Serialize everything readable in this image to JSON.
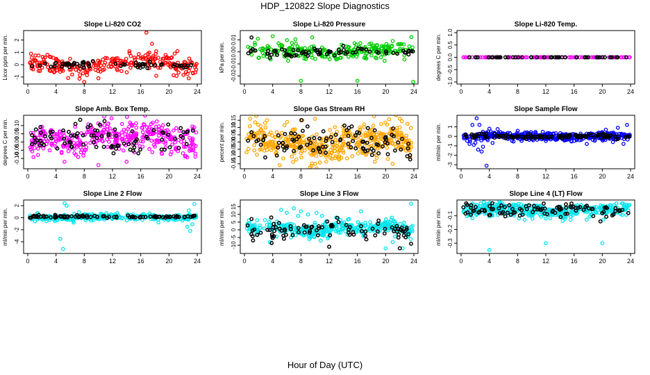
{
  "page": {
    "title": "HDP_120822  Slope Diagnostics",
    "x_axis_title": "Hour of Day (UTC)"
  },
  "chart_data": [
    {
      "type": "scatter",
      "title": "Slope Li-820 CO2",
      "ylabel": "Licor ppm per min.",
      "xlim": [
        0,
        24
      ],
      "ylim": [
        -1.4,
        2.6
      ],
      "xticks": [
        0,
        4,
        8,
        12,
        16,
        20,
        24
      ],
      "xtick_labels": [
        "0",
        "4",
        "8",
        "12",
        "16",
        "20",
        "24"
      ],
      "yticks": [
        -1,
        0,
        1,
        2
      ],
      "ytick_labels": [
        "-1",
        "0",
        "1",
        "2"
      ],
      "color": "#ff0000",
      "series": [
        {
          "name": "main",
          "center": 0.05,
          "spread": 0.35,
          "wobble": [
            0.15,
            0.35
          ],
          "count": 260,
          "outliers": [
            [
              14.4,
              1.1
            ],
            [
              14.6,
              0.7
            ],
            [
              16.8,
              2.6
            ],
            [
              17.6,
              1.7
            ],
            [
              18.2,
              -0.9
            ],
            [
              19.9,
              0.5
            ],
            [
              20.8,
              0.9
            ],
            [
              21.2,
              1.1
            ],
            [
              22.4,
              -0.6
            ],
            [
              22.8,
              -1.1
            ],
            [
              23.4,
              -0.7
            ],
            [
              10.0,
              -1.1
            ],
            [
              8.0,
              -1.4
            ],
            [
              5.0,
              -0.5
            ]
          ]
        },
        {
          "name": "reference",
          "center": -0.02,
          "spread": 0.12,
          "wobble": [
            0.05,
            0.1
          ],
          "count": 60,
          "outliers": []
        }
      ]
    },
    {
      "type": "scatter",
      "title": "Slope Li-820 Pressure",
      "ylabel": "kPa per min.",
      "xlim": [
        0,
        24
      ],
      "ylim": [
        -0.025,
        0.016
      ],
      "xticks": [
        0,
        4,
        8,
        12,
        16,
        20,
        24
      ],
      "xtick_labels": [
        "0",
        "4",
        "8",
        "12",
        "16",
        "20",
        "24"
      ],
      "yticks": [
        -0.02,
        -0.01,
        0.0,
        0.01
      ],
      "ytick_labels": [
        "-0.02",
        "-0.01",
        "0.00",
        "0.01"
      ],
      "color": "#00cc00",
      "series": [
        {
          "name": "main",
          "center": 0.0005,
          "spread": 0.003,
          "wobble": [
            0.001,
            0.0015
          ],
          "count": 260,
          "outliers": [
            [
              8.0,
              -0.024
            ],
            [
              16.0,
              -0.024
            ],
            [
              23.9,
              -0.025
            ],
            [
              4.0,
              0.013
            ],
            [
              9.6,
              0.012
            ],
            [
              1.9,
              0.011
            ],
            [
              21.0,
              0.009
            ],
            [
              2.0,
              -0.005
            ],
            [
              3.2,
              -0.004
            ]
          ]
        },
        {
          "name": "reference",
          "center": 0.0,
          "spread": 0.0015,
          "wobble": [
            0.0005,
            0.001
          ],
          "count": 70,
          "outliers": [
            [
              1.0,
              0.012
            ],
            [
              3.6,
              -0.005
            ],
            [
              14.0,
              0.005
            ]
          ]
        }
      ]
    },
    {
      "type": "scatter",
      "title": "Slope Li-820 Temp.",
      "ylabel": "degrees C per min.",
      "xlim": [
        0,
        24
      ],
      "ylim": [
        -1.0,
        1.0
      ],
      "xticks": [
        0,
        4,
        8,
        12,
        16,
        20,
        24
      ],
      "xtick_labels": [
        "0",
        "4",
        "8",
        "12",
        "16",
        "20",
        "24"
      ],
      "yticks": [
        -1.0,
        -0.5,
        0.0,
        0.5,
        1.0
      ],
      "ytick_labels": [
        "-1.0",
        "-0.5",
        "0.0",
        "0.5",
        "1.0"
      ],
      "color": "#ff00ff",
      "series": [
        {
          "name": "main",
          "center": 0.0,
          "spread": 0.0,
          "wobble": [
            0,
            0
          ],
          "count": 120,
          "outliers": []
        },
        {
          "name": "reference",
          "center": 0.0,
          "spread": 0.0,
          "wobble": [
            0,
            0
          ],
          "count": 50,
          "outliers": []
        }
      ]
    },
    {
      "type": "scatter",
      "title": "Slope Amb. Box Temp.",
      "ylabel": "degrees C per min.",
      "xlim": [
        0,
        24
      ],
      "ylim": [
        -0.15,
        0.15
      ],
      "xticks": [
        0,
        4,
        8,
        12,
        16,
        20,
        24
      ],
      "xtick_labels": [
        "0",
        "4",
        "8",
        "12",
        "16",
        "20",
        "24"
      ],
      "yticks": [
        -0.1,
        -0.05,
        0.0,
        0.05,
        0.1
      ],
      "ytick_labels": [
        "-0.10",
        "-0.05",
        "0.00",
        "0.05",
        "0.10"
      ],
      "color": "#ff00ff",
      "series": [
        {
          "name": "main",
          "center": 0.02,
          "spread": 0.045,
          "wobble": [
            0.02,
            0.03
          ],
          "count": 380,
          "outliers": [
            [
              10.0,
              -0.14
            ],
            [
              14.0,
              -0.12
            ]
          ]
        },
        {
          "name": "reference",
          "center": 0.02,
          "spread": 0.045,
          "wobble": [
            0.015,
            0.02
          ],
          "count": 90,
          "outliers": []
        }
      ]
    },
    {
      "type": "scatter",
      "title": "Slope Gas Stream RH",
      "ylabel": "percent per min.",
      "xlim": [
        0,
        24
      ],
      "ylim": [
        -0.17,
        0.17
      ],
      "xticks": [
        0,
        4,
        8,
        12,
        16,
        20,
        24
      ],
      "xtick_labels": [
        "0",
        "4",
        "8",
        "12",
        "16",
        "20",
        "24"
      ],
      "yticks": [
        -0.15,
        -0.1,
        -0.05,
        0.0,
        0.05,
        0.1,
        0.15
      ],
      "ytick_labels": [
        "-0.15",
        "-0.10",
        "-0.05",
        "0.00",
        "0.05",
        "0.10",
        "0.15"
      ],
      "color": "#ffa500",
      "series": [
        {
          "name": "main",
          "center": 0.0,
          "spread": 0.055,
          "wobble": [
            0.02,
            0.03
          ],
          "count": 460,
          "outliers": [
            [
              0.8,
              0.16
            ],
            [
              3.2,
              0.15
            ],
            [
              8.2,
              0.15
            ],
            [
              10.0,
              0.16
            ],
            [
              5.0,
              -0.16
            ],
            [
              21.0,
              -0.15
            ]
          ]
        },
        {
          "name": "reference",
          "center": 0.0,
          "spread": 0.05,
          "wobble": [
            0.02,
            0.02
          ],
          "count": 100,
          "outliers": []
        }
      ]
    },
    {
      "type": "scatter",
      "title": "Slope Sample Flow",
      "ylabel": "ml/min per min.",
      "xlim": [
        0,
        24
      ],
      "ylim": [
        -3.2,
        2.0
      ],
      "xticks": [
        0,
        4,
        8,
        12,
        16,
        20,
        24
      ],
      "xtick_labels": [
        "0",
        "4",
        "8",
        "12",
        "16",
        "20",
        "24"
      ],
      "yticks": [
        -3,
        -2,
        -1,
        0,
        1
      ],
      "ytick_labels": [
        "-3",
        "-2",
        "-1",
        "0",
        "1"
      ],
      "color": "#0000ff",
      "series": [
        {
          "name": "main",
          "center": 0.0,
          "spread": 0.22,
          "wobble": [
            0.05,
            0.08
          ],
          "count": 420,
          "outliers": [
            [
              1.6,
              1.2
            ],
            [
              2.2,
              1.9
            ],
            [
              2.6,
              1.2
            ],
            [
              1.8,
              -0.9
            ],
            [
              2.4,
              -1.4
            ],
            [
              2.9,
              -1.6
            ],
            [
              3.1,
              -1.1
            ],
            [
              3.6,
              -3.1
            ],
            [
              1.2,
              -0.8
            ],
            [
              4.0,
              0.8
            ],
            [
              20.5,
              0.7
            ],
            [
              22.2,
              0.9
            ],
            [
              23.5,
              1.2
            ],
            [
              23.0,
              -0.8
            ],
            [
              21.5,
              -0.6
            ],
            [
              17.8,
              -0.8
            ]
          ]
        },
        {
          "name": "reference",
          "center": 0.0,
          "spread": 0.12,
          "wobble": [
            0.03,
            0.05
          ],
          "count": 120,
          "outliers": []
        }
      ]
    },
    {
      "type": "scatter",
      "title": "Slope Line 2 Flow",
      "ylabel": "ml/min per min.",
      "xlim": [
        0,
        24
      ],
      "ylim": [
        -5.6,
        2.6
      ],
      "xticks": [
        0,
        4,
        8,
        12,
        16,
        20,
        24
      ],
      "xtick_labels": [
        "0",
        "4",
        "8",
        "12",
        "16",
        "20",
        "24"
      ],
      "yticks": [
        -4,
        -2,
        0,
        2
      ],
      "ytick_labels": [
        "-4",
        "-2",
        "0",
        "2"
      ],
      "color": "#00e5ee",
      "series": [
        {
          "name": "main",
          "center": 0.1,
          "spread": 0.28,
          "wobble": [
            0.05,
            0.08
          ],
          "count": 340,
          "outliers": [
            [
              4.6,
              -3.5
            ],
            [
              5.0,
              -5.2
            ],
            [
              5.2,
              2.4
            ],
            [
              5.5,
              2.0
            ],
            [
              22.6,
              -1.5
            ],
            [
              23.0,
              -2.2
            ],
            [
              23.3,
              -1.1
            ],
            [
              23.6,
              2.3
            ],
            [
              22.8,
              1.2
            ],
            [
              1.0,
              -0.6
            ]
          ]
        },
        {
          "name": "reference",
          "center": 0.15,
          "spread": 0.1,
          "wobble": [
            0.02,
            0.03
          ],
          "count": 90,
          "outliers": []
        }
      ]
    },
    {
      "type": "scatter",
      "title": "Slope Line 3 Flow",
      "ylabel": "ml/min per min.",
      "xlim": [
        0,
        24
      ],
      "ylim": [
        -14,
        18
      ],
      "xticks": [
        0,
        4,
        8,
        12,
        16,
        20,
        24
      ],
      "xtick_labels": [
        "0",
        "4",
        "8",
        "12",
        "16",
        "20",
        "24"
      ],
      "yticks": [
        -10,
        -5,
        0,
        5,
        10,
        15
      ],
      "ytick_labels": [
        "-10",
        "-5",
        "0",
        "5",
        "10",
        "15"
      ],
      "color": "#00e5ee",
      "series": [
        {
          "name": "main",
          "center": 1.0,
          "spread": 2.2,
          "wobble": [
            1.0,
            1.5
          ],
          "count": 360,
          "outliers": [
            [
              5.2,
              13
            ],
            [
              6.0,
              11
            ],
            [
              7.0,
              14
            ],
            [
              7.6,
              9
            ],
            [
              8.0,
              12
            ],
            [
              9.0,
              10
            ],
            [
              10.2,
              11
            ],
            [
              11.0,
              9
            ],
            [
              13.0,
              8
            ],
            [
              16.5,
              12
            ],
            [
              23.6,
              17
            ],
            [
              20.0,
              -12
            ],
            [
              22.4,
              -12
            ],
            [
              21.0,
              -8
            ],
            [
              9.2,
              -6
            ],
            [
              10.8,
              -7
            ],
            [
              3.6,
              -8
            ],
            [
              6.6,
              -5
            ]
          ]
        },
        {
          "name": "reference",
          "center": 0.5,
          "spread": 3.0,
          "wobble": [
            1.0,
            1.5
          ],
          "count": 90,
          "outliers": [
            [
              1.0,
              7
            ],
            [
              3.8,
              8
            ],
            [
              12.0,
              -11
            ],
            [
              22.0,
              -12
            ],
            [
              23.6,
              -9
            ],
            [
              19.0,
              6
            ]
          ]
        }
      ]
    },
    {
      "type": "scatter",
      "title": "Slope Line 4 (LT) Flow",
      "ylabel": "ml/min per min.",
      "xlim": [
        0,
        24
      ],
      "ylim": [
        -0.36,
        0.0
      ],
      "xticks": [
        0,
        4,
        8,
        12,
        16,
        20,
        24
      ],
      "xtick_labels": [
        "0",
        "4",
        "8",
        "12",
        "16",
        "20",
        "24"
      ],
      "yticks": [
        -0.3,
        -0.2,
        -0.1
      ],
      "ytick_labels": [
        "-0.3",
        "-0.2",
        "-0.1"
      ],
      "color": "#00e5ee",
      "series": [
        {
          "name": "main",
          "center": -0.06,
          "spread": 0.025,
          "wobble": [
            0.005,
            0.01
          ],
          "count": 420,
          "outliers": [
            [
              4.0,
              -0.35
            ],
            [
              12.0,
              -0.3
            ],
            [
              20.0,
              -0.3
            ],
            [
              9.0,
              -0.13
            ],
            [
              15.5,
              -0.13
            ]
          ]
        },
        {
          "name": "reference",
          "center": -0.06,
          "spread": 0.022,
          "wobble": [
            0.005,
            0.008
          ],
          "count": 100,
          "outliers": []
        }
      ]
    }
  ]
}
